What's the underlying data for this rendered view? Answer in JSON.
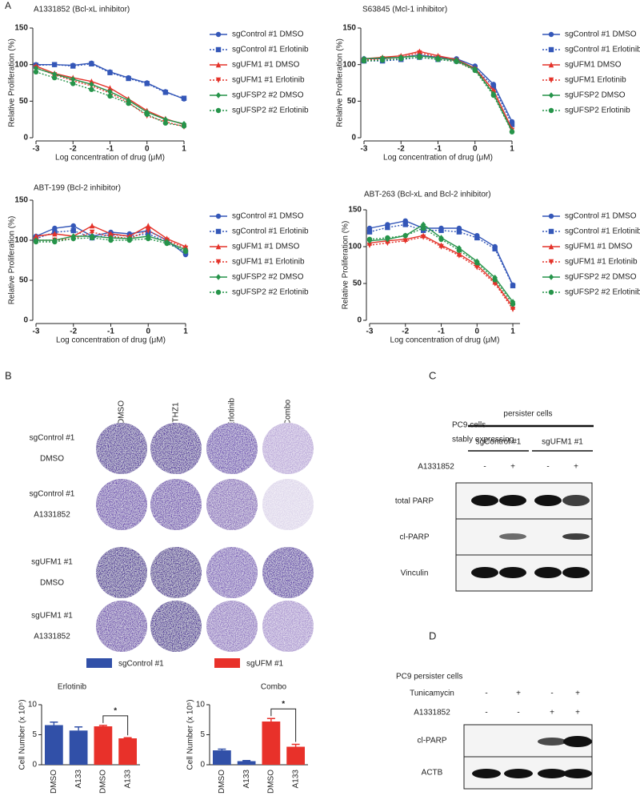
{
  "panel_labels": {
    "a": "A",
    "b": "B",
    "c": "C",
    "d": "D"
  },
  "chart_data": [
    {
      "type": "line",
      "title": "A1331852 (Bcl-xL inhibitor)",
      "x_label": "Log concentration of drug (μM)",
      "y_label": "Relative Proliferation (%)",
      "x": [
        -3,
        -2.5,
        -2,
        -1.5,
        -1,
        -0.5,
        0,
        0.5,
        1
      ],
      "xlim": [
        -3,
        1
      ],
      "xticks": [
        -3,
        -2,
        -1,
        0,
        1
      ],
      "ylim": [
        0,
        150
      ],
      "yticks": [
        0,
        50,
        100,
        150
      ],
      "series": [
        {
          "name": "sgControl #1 DMSO",
          "color": "#3457b8",
          "marker": "circle",
          "dashed": false,
          "values": [
            100,
            100,
            99,
            102,
            90,
            82,
            75,
            63,
            53
          ]
        },
        {
          "name": "sgControl #1 Erlotinib",
          "color": "#3457b8",
          "marker": "square",
          "dashed": true,
          "values": [
            99,
            100,
            98,
            101,
            89,
            81,
            74,
            62,
            54
          ]
        },
        {
          "name": "sgUFM1 #1 DMSO",
          "color": "#e4332a",
          "marker": "triangle",
          "dashed": false,
          "values": [
            98,
            88,
            82,
            77,
            68,
            53,
            37,
            26,
            18
          ]
        },
        {
          "name": "sgUFM1 #1 Erlotinib",
          "color": "#e4332a",
          "marker": "triangle-down",
          "dashed": true,
          "values": [
            96,
            86,
            78,
            71,
            61,
            48,
            30,
            22,
            15
          ]
        },
        {
          "name": "sgUFSP2 #2 DMSO",
          "color": "#26944a",
          "marker": "diamond",
          "dashed": false,
          "values": [
            95,
            87,
            80,
            73,
            63,
            51,
            35,
            25,
            19
          ]
        },
        {
          "name": "sgUFSP2 #2 Erlotinib",
          "color": "#26944a",
          "marker": "circle",
          "dashed": true,
          "values": [
            90,
            82,
            74,
            66,
            57,
            47,
            32,
            20,
            16
          ]
        }
      ]
    },
    {
      "type": "line",
      "title": "S63845 (Mcl-1 inhibitor)",
      "x_label": "Log concentration of drug (μM)",
      "y_label": "Relative Proliferation (%)",
      "x": [
        -3,
        -2.5,
        -2,
        -1.5,
        -1,
        -0.5,
        0,
        0.5,
        1
      ],
      "xlim": [
        -3,
        1
      ],
      "xticks": [
        -3,
        -2,
        -1,
        0,
        1
      ],
      "ylim": [
        0,
        150
      ],
      "yticks": [
        0,
        50,
        100,
        150
      ],
      "series": [
        {
          "name": "sgControl #1 DMSO",
          "color": "#3457b8",
          "marker": "circle",
          "dashed": false,
          "values": [
            108,
            108,
            110,
            113,
            110,
            108,
            98,
            73,
            22
          ]
        },
        {
          "name": "sgControl #1 Erlotinib",
          "color": "#3457b8",
          "marker": "square",
          "dashed": true,
          "values": [
            105,
            105,
            107,
            110,
            107,
            105,
            95,
            70,
            18
          ]
        },
        {
          "name": "sgUFM1 DMSO",
          "color": "#e4332a",
          "marker": "triangle",
          "dashed": false,
          "values": [
            108,
            110,
            112,
            118,
            112,
            107,
            95,
            65,
            12
          ]
        },
        {
          "name": "sgUFM1 Erlotinib",
          "color": "#e4332a",
          "marker": "triangle-down",
          "dashed": true,
          "values": [
            106,
            108,
            110,
            116,
            110,
            105,
            93,
            62,
            10
          ]
        },
        {
          "name": "sgUFSP2 DMSO",
          "color": "#26944a",
          "marker": "diamond",
          "dashed": false,
          "values": [
            108,
            109,
            110,
            112,
            109,
            106,
            94,
            60,
            9
          ]
        },
        {
          "name": "sgUFSP2 Erlotinib",
          "color": "#26944a",
          "marker": "circle",
          "dashed": true,
          "values": [
            105,
            106,
            108,
            110,
            107,
            104,
            92,
            58,
            8
          ]
        }
      ]
    },
    {
      "type": "line",
      "title": "ABT-199 (Bcl-2 inhibitor)",
      "x_label": "Log concentration of drug (μM)",
      "y_label": "Relative Proliferation (%)",
      "x": [
        -3,
        -2.5,
        -2,
        -1.5,
        -1,
        -0.5,
        0,
        0.5,
        1
      ],
      "xlim": [
        -3,
        1
      ],
      "xticks": [
        -3,
        -2,
        -1,
        0,
        1
      ],
      "ylim": [
        0,
        150
      ],
      "yticks": [
        0,
        50,
        100,
        150
      ],
      "series": [
        {
          "name": "sgControl #1 DMSO",
          "color": "#3457b8",
          "marker": "circle",
          "dashed": false,
          "values": [
            105,
            115,
            118,
            105,
            110,
            108,
            112,
            100,
            82
          ]
        },
        {
          "name": "sgControl #1 Erlotinib",
          "color": "#3457b8",
          "marker": "square",
          "dashed": true,
          "values": [
            102,
            110,
            112,
            103,
            107,
            105,
            108,
            98,
            85
          ]
        },
        {
          "name": "sgUFM1 #1 DMSO",
          "color": "#e4332a",
          "marker": "triangle",
          "dashed": false,
          "values": [
            105,
            108,
            105,
            118,
            108,
            105,
            118,
            102,
            92
          ]
        },
        {
          "name": "sgUFM1 #1 Erlotinib",
          "color": "#e4332a",
          "marker": "triangle-down",
          "dashed": true,
          "values": [
            100,
            100,
            102,
            110,
            105,
            102,
            112,
            100,
            90
          ]
        },
        {
          "name": "sgUFSP2 #2 DMSO",
          "color": "#26944a",
          "marker": "diamond",
          "dashed": false,
          "values": [
            100,
            100,
            105,
            105,
            103,
            102,
            105,
            98,
            88
          ]
        },
        {
          "name": "sgUFSP2 #2 Erlotinib",
          "color": "#26944a",
          "marker": "circle",
          "dashed": true,
          "values": [
            98,
            98,
            102,
            103,
            100,
            100,
            102,
            96,
            86
          ]
        }
      ]
    },
    {
      "type": "line",
      "title": "ABT-263 (Bcl-xL and Bcl-2 inhibitor)",
      "x_label": "Log concentration of drug (μM)",
      "y_label": "Relative Proliferation (%)",
      "x": [
        -3,
        -2.5,
        -2,
        -1.5,
        -1,
        -0.5,
        0,
        0.5,
        1
      ],
      "xlim": [
        -3,
        1.2
      ],
      "xticks": [
        -3,
        -2,
        -1,
        0,
        1
      ],
      "ylim": [
        0,
        150
      ],
      "yticks": [
        0,
        50,
        100,
        150
      ],
      "series": [
        {
          "name": "sgControl #1 DMSO",
          "color": "#3457b8",
          "marker": "circle",
          "dashed": false,
          "values": [
            125,
            130,
            135,
            125,
            125,
            125,
            115,
            100,
            48
          ]
        },
        {
          "name": "sgControl #1 Erlotinib",
          "color": "#3457b8",
          "marker": "square",
          "dashed": true,
          "values": [
            120,
            126,
            130,
            122,
            122,
            120,
            112,
            97,
            47
          ]
        },
        {
          "name": "sgUFM1 #1 DMSO",
          "color": "#e4332a",
          "marker": "triangle",
          "dashed": false,
          "values": [
            105,
            108,
            110,
            115,
            102,
            90,
            75,
            52,
            18
          ]
        },
        {
          "name": "sgUFM1 #1 Erlotinib",
          "color": "#e4332a",
          "marker": "triangle-down",
          "dashed": true,
          "values": [
            102,
            105,
            108,
            113,
            100,
            88,
            72,
            50,
            15
          ]
        },
        {
          "name": "sgUFSP2 #2 DMSO",
          "color": "#26944a",
          "marker": "diamond",
          "dashed": false,
          "values": [
            108,
            110,
            115,
            130,
            112,
            98,
            80,
            58,
            25
          ]
        },
        {
          "name": "sgUFSP2 #2 Erlotinib",
          "color": "#26944a",
          "marker": "circle",
          "dashed": true,
          "values": [
            110,
            112,
            115,
            125,
            110,
            95,
            78,
            55,
            22
          ]
        }
      ]
    },
    {
      "type": "bar",
      "title": "Erlotinib",
      "y_label": "Cell Number (x 10⁵)",
      "categories": [
        "DMSO",
        "A133",
        "DMSO",
        "A133"
      ],
      "values": [
        6.6,
        5.7,
        6.4,
        4.4
      ],
      "errors": [
        0.5,
        0.6,
        0.15,
        0.1
      ],
      "colors": [
        "#3150a8",
        "#3150a8",
        "#e8312a",
        "#e8312a"
      ],
      "ylim": [
        0,
        10
      ],
      "yticks": [
        0,
        5,
        10
      ],
      "annotation": "*"
    },
    {
      "type": "bar",
      "title": "Combo",
      "y_label": "Cell Number (x 10⁵)",
      "categories": [
        "DMSO",
        "A133",
        "DMSO",
        "A133"
      ],
      "values": [
        2.4,
        0.6,
        7.2,
        3.0
      ],
      "errors": [
        0.2,
        0.1,
        0.5,
        0.4
      ],
      "colors": [
        "#3150a8",
        "#3150a8",
        "#e8312a",
        "#e8312a"
      ],
      "ylim": [
        0,
        10
      ],
      "yticks": [
        0,
        5,
        10
      ],
      "annotation": "*"
    }
  ],
  "colony_assay": {
    "columns": [
      "DMSO",
      "THZ1",
      "Erlotinib",
      "Combo"
    ],
    "rows": [
      [
        "sgControl #1",
        "DMSO"
      ],
      [
        "sgControl #1",
        "A1331852"
      ],
      [
        "sgUFM1 #1",
        "DMSO"
      ],
      [
        "sgUFM1 #1",
        "A1331852"
      ]
    ],
    "legend": [
      {
        "name": "sgControl #1",
        "color": "#3150a8"
      },
      {
        "name": "sgUFM #1",
        "color": "#e8312a"
      }
    ]
  },
  "blot_c": {
    "header": "persister cells",
    "cell_line": [
      "PC9 cells",
      "stably expressing"
    ],
    "groups": [
      "sgControl #1",
      "sgUFM1 #1"
    ],
    "treatment": "A1331852",
    "signs": [
      "-",
      "+",
      "-",
      "+"
    ],
    "bands": [
      "total PARP",
      "cl-PARP",
      "Vinculin"
    ]
  },
  "blot_d": {
    "title": "PC9 persister cells",
    "treatments": [
      {
        "name": "Tunicamycin",
        "signs": [
          "-",
          "+",
          "-",
          "+"
        ]
      },
      {
        "name": "A1331852",
        "signs": [
          "-",
          "-",
          "+",
          "+"
        ]
      }
    ],
    "bands": [
      "cl-PARP",
      "ACTB"
    ]
  }
}
